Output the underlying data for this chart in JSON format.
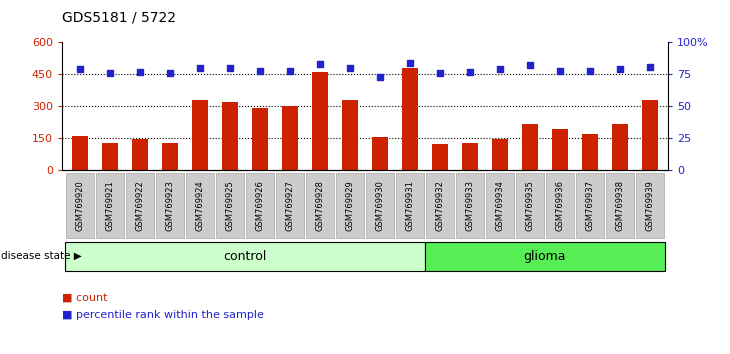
{
  "title": "GDS5181 / 5722",
  "samples": [
    "GSM769920",
    "GSM769921",
    "GSM769922",
    "GSM769923",
    "GSM769924",
    "GSM769925",
    "GSM769926",
    "GSM769927",
    "GSM769928",
    "GSM769929",
    "GSM769930",
    "GSM769931",
    "GSM769932",
    "GSM769933",
    "GSM769934",
    "GSM769935",
    "GSM769936",
    "GSM769937",
    "GSM769938",
    "GSM769939"
  ],
  "counts": [
    160,
    128,
    145,
    128,
    330,
    318,
    293,
    300,
    462,
    328,
    157,
    480,
    120,
    128,
    145,
    215,
    195,
    168,
    215,
    330
  ],
  "percentile_ranks": [
    79,
    76,
    77,
    76,
    80,
    80,
    78,
    78,
    83,
    80,
    73,
    84,
    76,
    77,
    79,
    82,
    78,
    78,
    79,
    81
  ],
  "bar_color": "#cc2200",
  "dot_color": "#2222cc",
  "ylim_left": [
    0,
    600
  ],
  "ylim_right": [
    0,
    100
  ],
  "yticks_left": [
    0,
    150,
    300,
    450,
    600
  ],
  "yticks_right": [
    0,
    25,
    50,
    75,
    100
  ],
  "ytick_labels_left": [
    "0",
    "150",
    "300",
    "450",
    "600"
  ],
  "ytick_labels_right": [
    "0",
    "25",
    "50",
    "75",
    "100%"
  ],
  "hlines": [
    150,
    300,
    450
  ],
  "control_count": 12,
  "glioma_count": 8,
  "group_labels": [
    "control",
    "glioma"
  ],
  "group_color_control": "#ccffcc",
  "group_color_glioma": "#55ee55",
  "disease_state_label": "disease state",
  "legend_count_label": "count",
  "legend_percentile_label": "percentile rank within the sample",
  "bar_width": 0.55,
  "plot_bg_color": "#ffffff",
  "xtick_bg_color": "#cccccc",
  "xtick_border_color": "#999999"
}
